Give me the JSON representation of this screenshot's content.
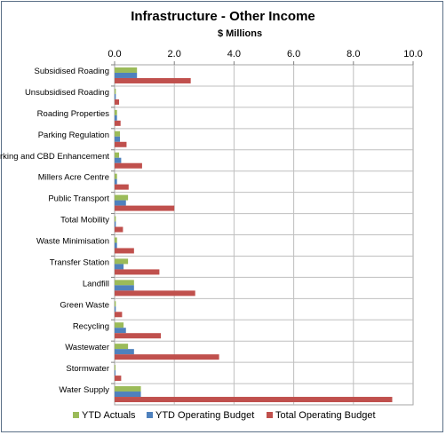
{
  "chart_data": {
    "type": "bar",
    "orientation": "horizontal",
    "title": "Infrastructure - Other Income",
    "subtitle": "$ Millions",
    "xlim": [
      0,
      10
    ],
    "xticks": [
      "0.0",
      "2.0",
      "4.0",
      "6.0",
      "8.0",
      "10.0"
    ],
    "grid": true,
    "legend_position": "bottom",
    "categories": [
      "Subsidised Roading",
      "Unsubsidised Roading",
      "Roading Properties",
      "Parking Regulation",
      "Parking and CBD Enhancement",
      "Millers Acre Centre",
      "Public Transport",
      "Total Mobility",
      "Waste Minimisation",
      "Transfer Station",
      "Landfill",
      "Green Waste",
      "Recycling",
      "Wastewater",
      "Stormwater",
      "Water Supply"
    ],
    "series": [
      {
        "name": "YTD Actuals",
        "color": "#9bbb59",
        "values": [
          0.75,
          0.04,
          0.08,
          0.18,
          0.15,
          0.08,
          0.45,
          0.04,
          0.08,
          0.45,
          0.65,
          0.04,
          0.3,
          0.45,
          0.03,
          0.88
        ]
      },
      {
        "name": "YTD Operating Budget",
        "color": "#4f81bd",
        "values": [
          0.75,
          0.04,
          0.08,
          0.18,
          0.22,
          0.08,
          0.38,
          0.04,
          0.08,
          0.3,
          0.65,
          0.04,
          0.38,
          0.65,
          0.03,
          0.88
        ]
      },
      {
        "name": "Total Operating Budget",
        "color": "#c0504d",
        "values": [
          2.55,
          0.15,
          0.2,
          0.4,
          0.92,
          0.47,
          2.0,
          0.28,
          0.65,
          1.5,
          2.7,
          0.25,
          1.55,
          3.5,
          0.22,
          9.3
        ]
      }
    ]
  }
}
